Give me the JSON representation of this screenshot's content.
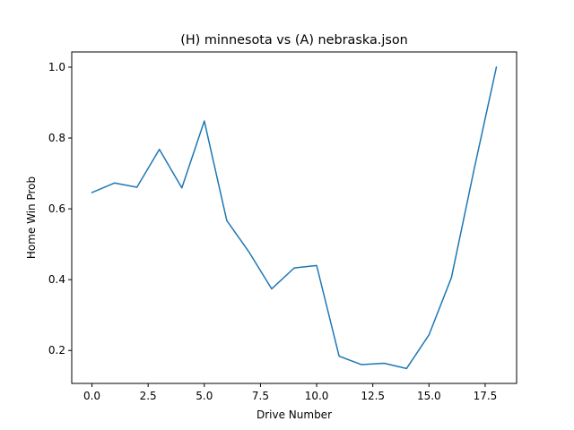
{
  "chart_data": {
    "type": "line",
    "title": "(H) minnesota vs (A) nebraska.json",
    "xlabel": "Drive Number",
    "ylabel": "Home Win Prob",
    "xlim": [
      -0.9,
      18.9
    ],
    "ylim": [
      0.107,
      1.043
    ],
    "xticks": [
      0.0,
      2.5,
      5.0,
      7.5,
      10.0,
      12.5,
      15.0,
      17.5
    ],
    "xtick_labels": [
      "0.0",
      "2.5",
      "5.0",
      "7.5",
      "10.0",
      "12.5",
      "15.0",
      "17.5"
    ],
    "yticks": [
      0.2,
      0.4,
      0.6,
      0.8,
      1.0
    ],
    "ytick_labels": [
      "0.2",
      "0.4",
      "0.6",
      "0.8",
      "1.0"
    ],
    "grid": false,
    "color": "#1f77b4",
    "series": [
      {
        "x": [
          0,
          1,
          2,
          3,
          4,
          5,
          6,
          7,
          8,
          9,
          10,
          11,
          12,
          13,
          14,
          15,
          16,
          17,
          18
        ],
        "values": [
          0.646,
          0.673,
          0.661,
          0.768,
          0.659,
          0.848,
          0.567,
          0.477,
          0.374,
          0.433,
          0.44,
          0.184,
          0.16,
          0.164,
          0.149,
          0.244,
          0.406,
          0.709,
          1.0
        ]
      }
    ]
  }
}
